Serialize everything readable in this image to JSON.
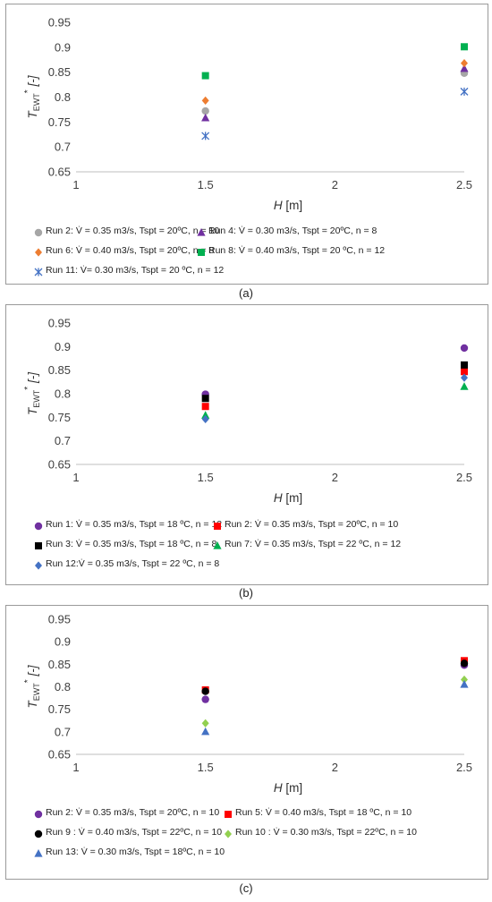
{
  "chart_data": [
    {
      "type": "scatter",
      "caption": "(a)",
      "xlabel": "H [m]",
      "ylabel": "T_EWT* [-]",
      "xlim": [
        1,
        2.5
      ],
      "ylim": [
        0.65,
        0.95
      ],
      "xticks": [
        "1",
        "1.5",
        "2",
        "2.5"
      ],
      "yticks": [
        "0.65",
        "0.7",
        "0.75",
        "0.8",
        "0.85",
        "0.9",
        "0.95"
      ],
      "grid": false,
      "legend_position": "bottom",
      "series": [
        {
          "name": "Run 2: V̇ = 0.35 m3/s, Tspt = 20ºC, n = 10",
          "marker": "circle",
          "color": "#a6a6a6",
          "x": [
            1.5,
            2.5
          ],
          "y": [
            0.772,
            0.848
          ]
        },
        {
          "name": "Run 4:  V̇ = 0.30 m3/s, Tspt = 20ºC, n = 8",
          "marker": "triangle",
          "color": "#7030a0",
          "x": [
            1.5,
            2.5
          ],
          "y": [
            0.758,
            0.857
          ]
        },
        {
          "name": "Run 6:  V̇ = 0.40 m3/s, Tspt = 20ºC, n = 8",
          "marker": "diamond",
          "color": "#ed7d31",
          "x": [
            1.5,
            2.5
          ],
          "y": [
            0.793,
            0.868
          ]
        },
        {
          "name": "Run 8:  V̇ = 0.40 m3/s, Tspt = 20 ºC, n = 12",
          "marker": "square",
          "color": "#00b050",
          "x": [
            1.5,
            2.5
          ],
          "y": [
            0.843,
            0.901
          ]
        },
        {
          "name": "Run 11:  V̇= 0.30 m3/s, Tspt = 20 ºC, n = 12",
          "marker": "asterisk",
          "color": "#4472c4",
          "x": [
            1.5,
            2.5
          ],
          "y": [
            0.722,
            0.811
          ]
        }
      ]
    },
    {
      "type": "scatter",
      "caption": "(b)",
      "xlabel": "H [m]",
      "ylabel": "T_EWT* [-]",
      "xlim": [
        1,
        2.5
      ],
      "ylim": [
        0.65,
        0.95
      ],
      "xticks": [
        "1",
        "1.5",
        "2",
        "2.5"
      ],
      "yticks": [
        "0.65",
        "0.7",
        "0.75",
        "0.8",
        "0.85",
        "0.9",
        "0.95"
      ],
      "grid": false,
      "legend_position": "bottom",
      "series": [
        {
          "name": "Run 1: V̇ = 0.35 m3/s, Tspt = 18 ºC, n = 12",
          "marker": "circle",
          "color": "#7030a0",
          "x": [
            1.5,
            2.5
          ],
          "y": [
            0.799,
            0.897
          ]
        },
        {
          "name": "Run 2: V̇ = 0.35 m3/s, Tspt = 20ºC, n = 10",
          "marker": "square",
          "color": "#ff0000",
          "x": [
            1.5,
            2.5
          ],
          "y": [
            0.773,
            0.847
          ]
        },
        {
          "name": "Run 3: V̇ = 0.35 m3/s, Tspt = 18 ºC, n = 8",
          "marker": "square",
          "color": "#000000",
          "x": [
            1.5,
            2.5
          ],
          "y": [
            0.79,
            0.861
          ]
        },
        {
          "name": "Run 7: V̇ = 0.35 m3/s, Tspt = 22 ºC, n = 12",
          "marker": "triangle",
          "color": "#00b050",
          "x": [
            1.5,
            2.5
          ],
          "y": [
            0.754,
            0.815
          ]
        },
        {
          "name": "Run 12:V̇ = 0.35 m3/s, Tspt = 22 ºC, n = 8",
          "marker": "diamond",
          "color": "#4472c4",
          "x": [
            1.5,
            2.5
          ],
          "y": [
            0.746,
            0.834
          ]
        }
      ]
    },
    {
      "type": "scatter",
      "caption": "(c)",
      "xlabel": "H [m]",
      "ylabel": "T_EWT* [-]",
      "xlim": [
        1,
        2.5
      ],
      "ylim": [
        0.65,
        0.95
      ],
      "xticks": [
        "1",
        "1.5",
        "2",
        "2.5"
      ],
      "yticks": [
        "0.65",
        "0.7",
        "0.75",
        "0.8",
        "0.85",
        "0.9",
        "0.95"
      ],
      "grid": false,
      "legend_position": "bottom",
      "series": [
        {
          "name": "Run 2: V̇ = 0.35 m3/s, Tspt = 20ºC, n = 10",
          "marker": "circle",
          "color": "#7030a0",
          "x": [
            1.5,
            2.5
          ],
          "y": [
            0.772,
            0.848
          ]
        },
        {
          "name": "Run 5: V̇ = 0.40 m3/s, Tspt = 18 ºC, n = 10",
          "marker": "square",
          "color": "#ff0000",
          "x": [
            1.5,
            2.5
          ],
          "y": [
            0.793,
            0.858
          ]
        },
        {
          "name": "Run 9 : V̇ = 0.40 m3/s, Tspt = 22ºC, n = 10",
          "marker": "circle",
          "color": "#000000",
          "x": [
            1.5,
            2.5
          ],
          "y": [
            0.79,
            0.852
          ]
        },
        {
          "name": "Run 10 : V̇ = 0.30 m3/s, Tspt = 22ºC, n = 10",
          "marker": "diamond",
          "color": "#92d050",
          "x": [
            1.5,
            2.5
          ],
          "y": [
            0.719,
            0.816
          ]
        },
        {
          "name": "Run 13: V̇ = 0.30 m3/s, Tspt = 18ºC, n = 10",
          "marker": "triangle",
          "color": "#4472c4",
          "x": [
            1.5,
            2.5
          ],
          "y": [
            0.7,
            0.805
          ]
        }
      ]
    }
  ]
}
